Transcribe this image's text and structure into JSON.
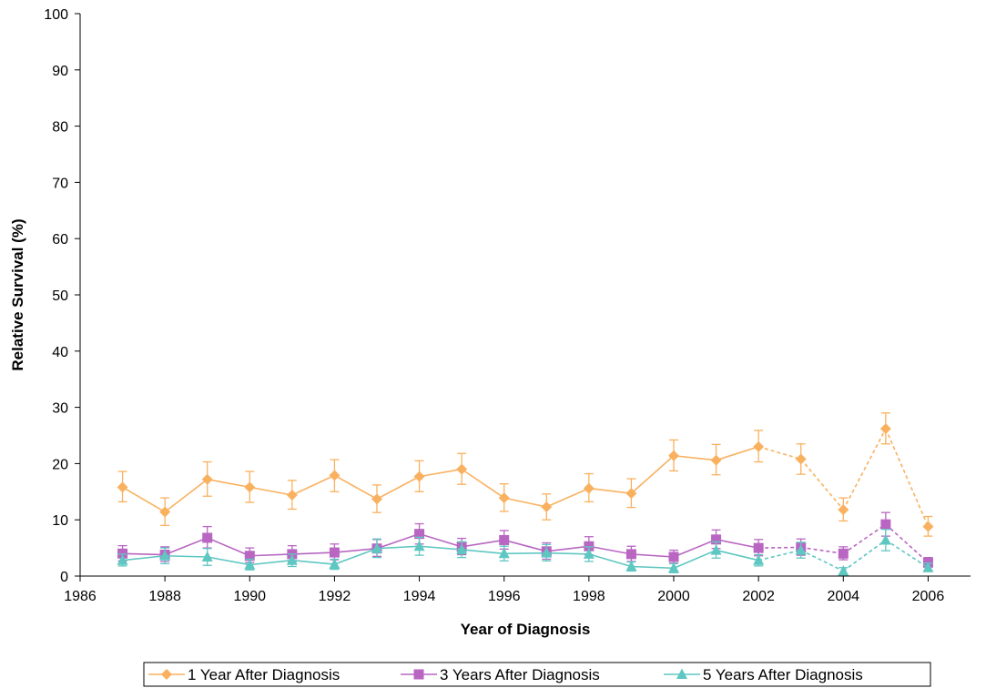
{
  "chart_data": {
    "type": "line",
    "xlabel": "Year of Diagnosis",
    "ylabel": "Relative Survival (%)",
    "xlim": [
      1986,
      2007
    ],
    "ylim": [
      0,
      100
    ],
    "x_ticks": [
      "1986",
      "1988",
      "1990",
      "1992",
      "1994",
      "1996",
      "1998",
      "2000",
      "2002",
      "2004",
      "2006"
    ],
    "y_ticks": [
      "0",
      "10",
      "20",
      "30",
      "40",
      "50",
      "60",
      "70",
      "80",
      "90",
      "100"
    ],
    "grid": false,
    "legend_position": "bottom",
    "series": [
      {
        "name": "1 Year After Diagnosis",
        "color": "#F9B15F",
        "marker": "diamond",
        "x": [
          1987,
          1988,
          1989,
          1990,
          1991,
          1992,
          1993,
          1994,
          1995,
          1996,
          1997,
          1998,
          1999,
          2000,
          2001,
          2002,
          2003,
          2004,
          2005,
          2006
        ],
        "values": [
          15.8,
          11.4,
          17.2,
          15.8,
          14.4,
          17.9,
          13.7,
          17.7,
          19.0,
          13.9,
          12.3,
          15.6,
          14.7,
          21.4,
          20.6,
          23.0,
          20.8,
          11.8,
          26.2,
          8.8
        ],
        "error_low": [
          13.2,
          9.0,
          14.2,
          13.1,
          11.9,
          15.0,
          11.3,
          15.0,
          16.3,
          11.5,
          10.0,
          13.2,
          12.2,
          18.7,
          18.0,
          20.3,
          18.1,
          9.8,
          23.5,
          7.1
        ],
        "error_high": [
          18.6,
          13.9,
          20.3,
          18.6,
          17.0,
          20.7,
          16.2,
          20.5,
          21.8,
          16.4,
          14.6,
          18.2,
          17.3,
          24.2,
          23.4,
          25.9,
          23.5,
          13.9,
          29.0,
          10.6
        ],
        "solid_until": 2002
      },
      {
        "name": "3 Years After Diagnosis",
        "color": "#B866C2",
        "marker": "square",
        "x": [
          1987,
          1988,
          1989,
          1990,
          1991,
          1992,
          1993,
          1994,
          1995,
          1996,
          1997,
          1998,
          1999,
          2000,
          2001,
          2002,
          2003,
          2004,
          2005,
          2006
        ],
        "values": [
          4.0,
          3.8,
          6.8,
          3.6,
          3.9,
          4.2,
          4.9,
          7.5,
          5.2,
          6.4,
          4.4,
          5.3,
          3.9,
          3.4,
          6.5,
          5.0,
          5.1,
          4.0,
          9.2,
          2.4
        ],
        "error_low": [
          2.7,
          2.6,
          5.0,
          2.4,
          2.6,
          2.9,
          3.5,
          5.7,
          3.8,
          4.8,
          3.0,
          3.8,
          2.6,
          2.3,
          4.9,
          3.6,
          3.7,
          2.9,
          7.1,
          1.6
        ],
        "error_high": [
          5.4,
          5.2,
          8.8,
          5.0,
          5.4,
          5.7,
          6.5,
          9.3,
          6.7,
          8.1,
          5.9,
          7.0,
          5.3,
          4.6,
          8.2,
          6.5,
          6.6,
          5.2,
          11.3,
          3.3
        ],
        "solid_until": 2002
      },
      {
        "name": "5 Years After Diagnosis",
        "color": "#5FC7C2",
        "marker": "triangle",
        "x": [
          1987,
          1988,
          1989,
          1990,
          1991,
          1992,
          1993,
          1994,
          1995,
          1996,
          1997,
          1998,
          1999,
          2000,
          2001,
          2002,
          2003,
          2004,
          2005,
          2006
        ],
        "values": [
          2.8,
          3.6,
          3.4,
          2.0,
          2.8,
          2.1,
          4.9,
          5.3,
          4.7,
          4.0,
          4.1,
          3.9,
          1.7,
          1.4,
          4.6,
          2.8,
          4.6,
          0.9,
          6.4,
          1.5
        ],
        "error_low": [
          1.8,
          2.2,
          1.9,
          1.1,
          1.7,
          1.2,
          3.3,
          3.7,
          3.3,
          2.7,
          2.7,
          2.6,
          0.9,
          0.6,
          3.2,
          1.8,
          3.2,
          0.3,
          4.5,
          0.8
        ],
        "error_high": [
          3.9,
          5.0,
          4.9,
          3.0,
          3.9,
          3.0,
          6.6,
          6.9,
          6.1,
          5.3,
          5.6,
          5.2,
          2.5,
          2.2,
          6.1,
          3.8,
          6.0,
          1.5,
          8.3,
          2.3
        ],
        "solid_until": 2002
      }
    ]
  }
}
